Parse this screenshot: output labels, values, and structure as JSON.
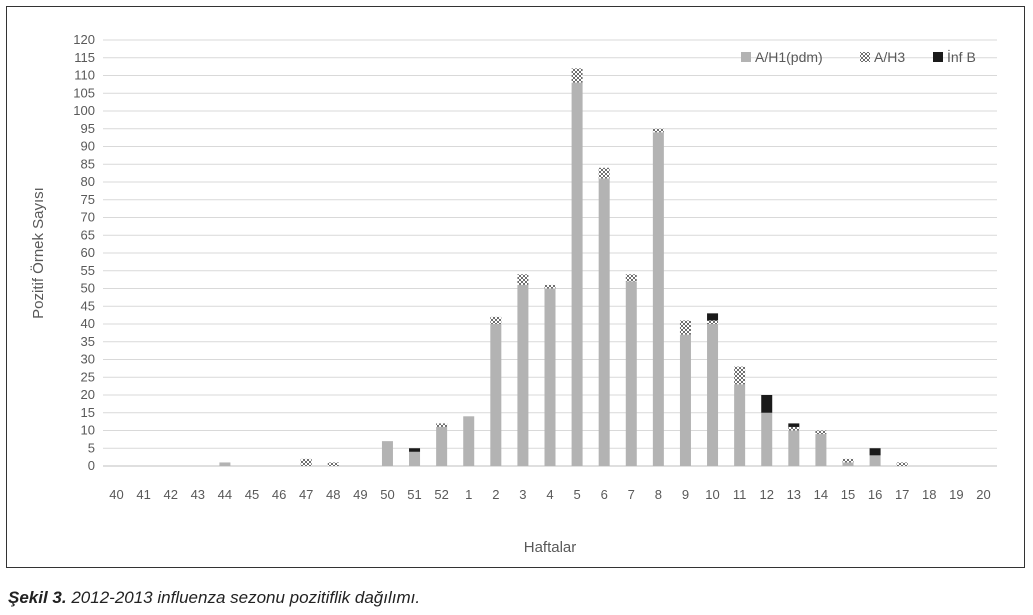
{
  "caption": {
    "label": "Şekil 3.",
    "text": "2012-2013 influenza sezonu pozitiflik dağılımı."
  },
  "colors": {
    "grid": "#d9d9d9",
    "h1": "#b3b3b3",
    "h3": "#7f7f7f",
    "infb": "#1a1a1a",
    "text": "#595959"
  },
  "chart_data": {
    "type": "bar",
    "stacked": true,
    "xlabel": "Haftalar",
    "ylabel": "Pozitif Örnek Sayısı",
    "ylim": [
      0,
      120
    ],
    "ytick_step": 5,
    "grid": true,
    "legend_position": "top-right",
    "categories": [
      "40",
      "41",
      "42",
      "43",
      "44",
      "45",
      "46",
      "47",
      "48",
      "49",
      "50",
      "51",
      "52",
      "1",
      "2",
      "3",
      "4",
      "5",
      "6",
      "7",
      "8",
      "9",
      "10",
      "11",
      "12",
      "13",
      "14",
      "15",
      "16",
      "17",
      "18",
      "19",
      "20"
    ],
    "series": [
      {
        "name": "A/H1(pdm)",
        "pattern": "solid-gray",
        "values": [
          0,
          0,
          0,
          0,
          1,
          0,
          0,
          0,
          0,
          0,
          7,
          4,
          11,
          14,
          40,
          51,
          50,
          108,
          81,
          52,
          94,
          37,
          40,
          23,
          15,
          10,
          9,
          1,
          3,
          0,
          0,
          0,
          0
        ]
      },
      {
        "name": "A/H3",
        "pattern": "checkered",
        "values": [
          0,
          0,
          0,
          0,
          0,
          0,
          0,
          2,
          1,
          0,
          0,
          0,
          1,
          0,
          2,
          3,
          1,
          4,
          3,
          2,
          1,
          4,
          1,
          5,
          0,
          1,
          1,
          1,
          0,
          1,
          0,
          0,
          0
        ]
      },
      {
        "name": "İnf B",
        "pattern": "solid-black",
        "values": [
          0,
          0,
          0,
          0,
          0,
          0,
          0,
          0,
          0,
          0,
          0,
          1,
          0,
          0,
          0,
          0,
          0,
          0,
          0,
          0,
          0,
          0,
          2,
          0,
          5,
          1,
          0,
          0,
          2,
          0,
          0,
          0,
          0
        ]
      }
    ]
  }
}
